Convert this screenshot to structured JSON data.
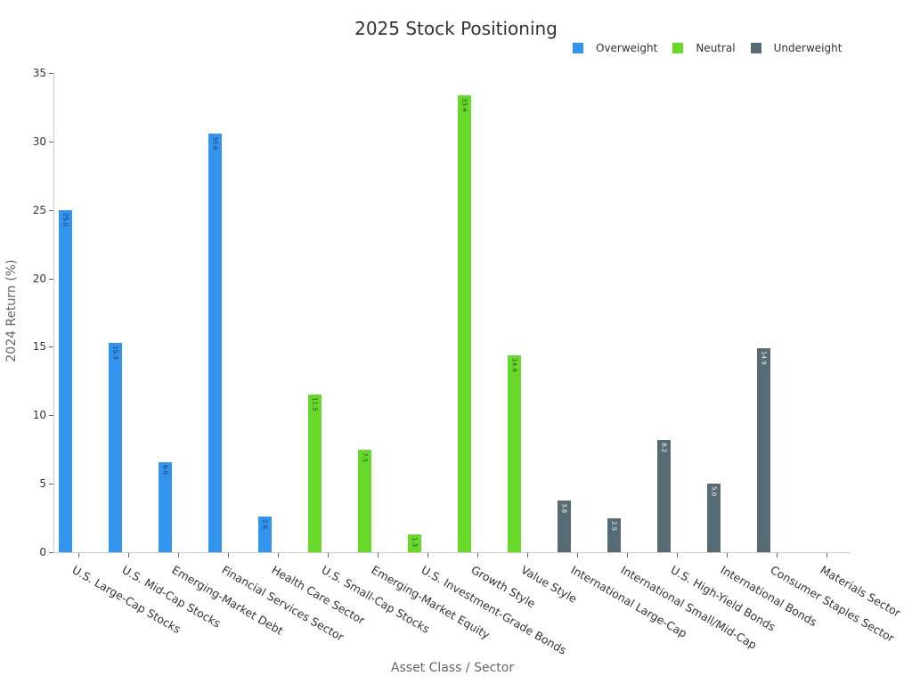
{
  "chart_data": {
    "type": "bar",
    "title": "2025 Stock Positioning",
    "xlabel": "Asset Class / Sector",
    "ylabel": "2024 Return (%)",
    "ylim": [
      0,
      35
    ],
    "yticks": [
      "0",
      "5",
      "10",
      "15",
      "20",
      "25",
      "30",
      "35"
    ],
    "grid": false,
    "legend_position": "top-right",
    "legend": [
      {
        "name": "Overweight",
        "color": "#3394f0"
      },
      {
        "name": "Neutral",
        "color": "#68d92a"
      },
      {
        "name": "Underweight",
        "color": "#566b73"
      }
    ],
    "categories": [
      "U.S. Large-Cap Stocks",
      "U.S. Mid-Cap Stocks",
      "Emerging-Market Debt",
      "Financial Services Sector",
      "Health Care Sector",
      "U.S. Small-Cap Stocks",
      "Emerging-Market Equity",
      "U.S. Investment-Grade Bonds",
      "Growth Style",
      "Value Style",
      "International Large-Cap",
      "International Small/Mid-Cap",
      "U.S. High-Yield Bonds",
      "International Bonds",
      "Consumer Staples Sector",
      "Materials Sector"
    ],
    "series": [
      {
        "name": "Overweight",
        "values": [
          25.0,
          15.3,
          6.6,
          30.6,
          2.6,
          null,
          null,
          null,
          null,
          null,
          null,
          null,
          null,
          null,
          null,
          null
        ]
      },
      {
        "name": "Neutral",
        "values": [
          null,
          null,
          null,
          null,
          null,
          11.5,
          7.5,
          1.3,
          33.4,
          14.4,
          null,
          null,
          null,
          null,
          null,
          null
        ]
      },
      {
        "name": "Underweight",
        "values": [
          null,
          null,
          null,
          null,
          null,
          null,
          null,
          null,
          null,
          null,
          3.8,
          2.5,
          8.2,
          5.0,
          14.9,
          0
        ]
      }
    ],
    "bars": [
      {
        "category": "U.S. Large-Cap Stocks",
        "group": "Overweight",
        "value": 25.0,
        "label": "25.0"
      },
      {
        "category": "U.S. Mid-Cap Stocks",
        "group": "Overweight",
        "value": 15.3,
        "label": "15.3"
      },
      {
        "category": "Emerging-Market Debt",
        "group": "Overweight",
        "value": 6.6,
        "label": "6.6"
      },
      {
        "category": "Financial Services Sector",
        "group": "Overweight",
        "value": 30.6,
        "label": "30.6"
      },
      {
        "category": "Health Care Sector",
        "group": "Overweight",
        "value": 2.6,
        "label": "2.6"
      },
      {
        "category": "U.S. Small-Cap Stocks",
        "group": "Neutral",
        "value": 11.5,
        "label": "11.5"
      },
      {
        "category": "Emerging-Market Equity",
        "group": "Neutral",
        "value": 7.5,
        "label": "7.5"
      },
      {
        "category": "U.S. Investment-Grade Bonds",
        "group": "Neutral",
        "value": 1.3,
        "label": "1.3"
      },
      {
        "category": "Growth Style",
        "group": "Neutral",
        "value": 33.4,
        "label": "33.4"
      },
      {
        "category": "Value Style",
        "group": "Neutral",
        "value": 14.4,
        "label": "14.4"
      },
      {
        "category": "International Large-Cap",
        "group": "Underweight",
        "value": 3.8,
        "label": "3.8"
      },
      {
        "category": "International Small/Mid-Cap",
        "group": "Underweight",
        "value": 2.5,
        "label": "2.5"
      },
      {
        "category": "U.S. High-Yield Bonds",
        "group": "Underweight",
        "value": 8.2,
        "label": "8.2"
      },
      {
        "category": "International Bonds",
        "group": "Underweight",
        "value": 5.0,
        "label": "5.0"
      },
      {
        "category": "Consumer Staples Sector",
        "group": "Underweight",
        "value": 14.9,
        "label": "14.9"
      },
      {
        "category": "Materials Sector",
        "group": "Underweight",
        "value": 0,
        "label": ""
      }
    ]
  }
}
